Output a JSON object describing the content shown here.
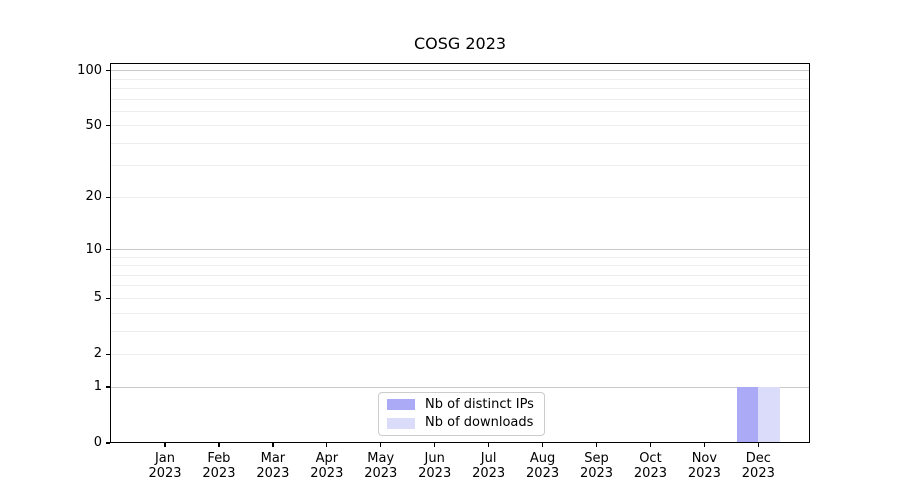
{
  "title": "COSG 2023",
  "chart_data": {
    "type": "bar",
    "title": "COSG 2023",
    "categories": [
      "Jan",
      "Feb",
      "Mar",
      "Apr",
      "May",
      "Jun",
      "Jul",
      "Aug",
      "Sep",
      "Oct",
      "Nov",
      "Dec"
    ],
    "category_year": "2023",
    "series": [
      {
        "name": "Nb of distinct IPs",
        "color": "#aaaaf7",
        "values": [
          0,
          0,
          0,
          0,
          0,
          0,
          0,
          0,
          0,
          0,
          0,
          1
        ]
      },
      {
        "name": "Nb of downloads",
        "color": "#dbdbfa",
        "values": [
          0,
          0,
          0,
          0,
          0,
          0,
          0,
          0,
          0,
          0,
          0,
          1
        ]
      }
    ],
    "xlabel": "",
    "ylabel": "",
    "y_scale": "log1p",
    "ylim": [
      0,
      110
    ],
    "y_tick_labels": [
      0,
      1,
      2,
      5,
      10,
      20,
      50,
      100
    ],
    "y_decade_gridlines": [
      1,
      10,
      100
    ],
    "y_minor_gridlines": [
      2,
      3,
      4,
      5,
      6,
      7,
      8,
      9,
      20,
      30,
      40,
      50,
      60,
      70,
      80,
      90
    ],
    "grid": "y",
    "legend_position": "lower center",
    "colors": {
      "grid_decade": "#c9c9c9",
      "grid_minor": "#ededed",
      "spine": "#000000",
      "background": "#ffffff",
      "text": "#000000"
    }
  }
}
